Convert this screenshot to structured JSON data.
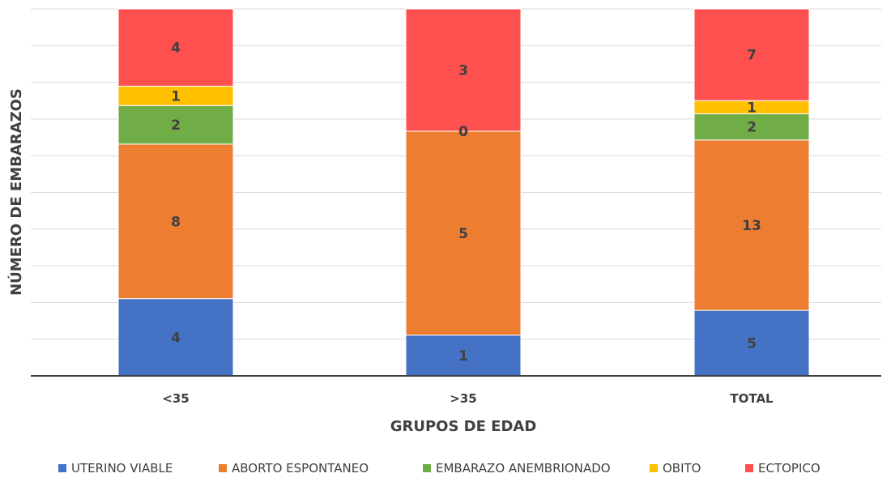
{
  "chart_data": {
    "type": "bar",
    "stacked": true,
    "categories": [
      "<35",
      ">35",
      "TOTAL"
    ],
    "series": [
      {
        "name": "UTERINO VIABLE",
        "color": "#4472C4",
        "values": [
          4,
          1,
          5
        ]
      },
      {
        "name": "ABORTO ESPONTANEO",
        "color": "#ED7D31",
        "values": [
          8,
          5,
          13
        ]
      },
      {
        "name": "EMBARAZO ANEMBRIONADO",
        "color": "#70AD47",
        "values": [
          2,
          0,
          2
        ]
      },
      {
        "name": "OBITO",
        "color": "#FFC000",
        "values": [
          1,
          0,
          1
        ]
      },
      {
        "name": "ECTOPICO",
        "color": "#FF5050",
        "values": [
          4,
          3,
          7
        ]
      }
    ],
    "value_axis": "percent_of_total",
    "ylim": [
      0,
      100
    ],
    "xlabel": "GRUPOS DE EDAD",
    "ylabel": "NÚMERO DE EMBARAZOS",
    "grid": true,
    "legend_position": "bottom",
    "data_labels": true
  }
}
